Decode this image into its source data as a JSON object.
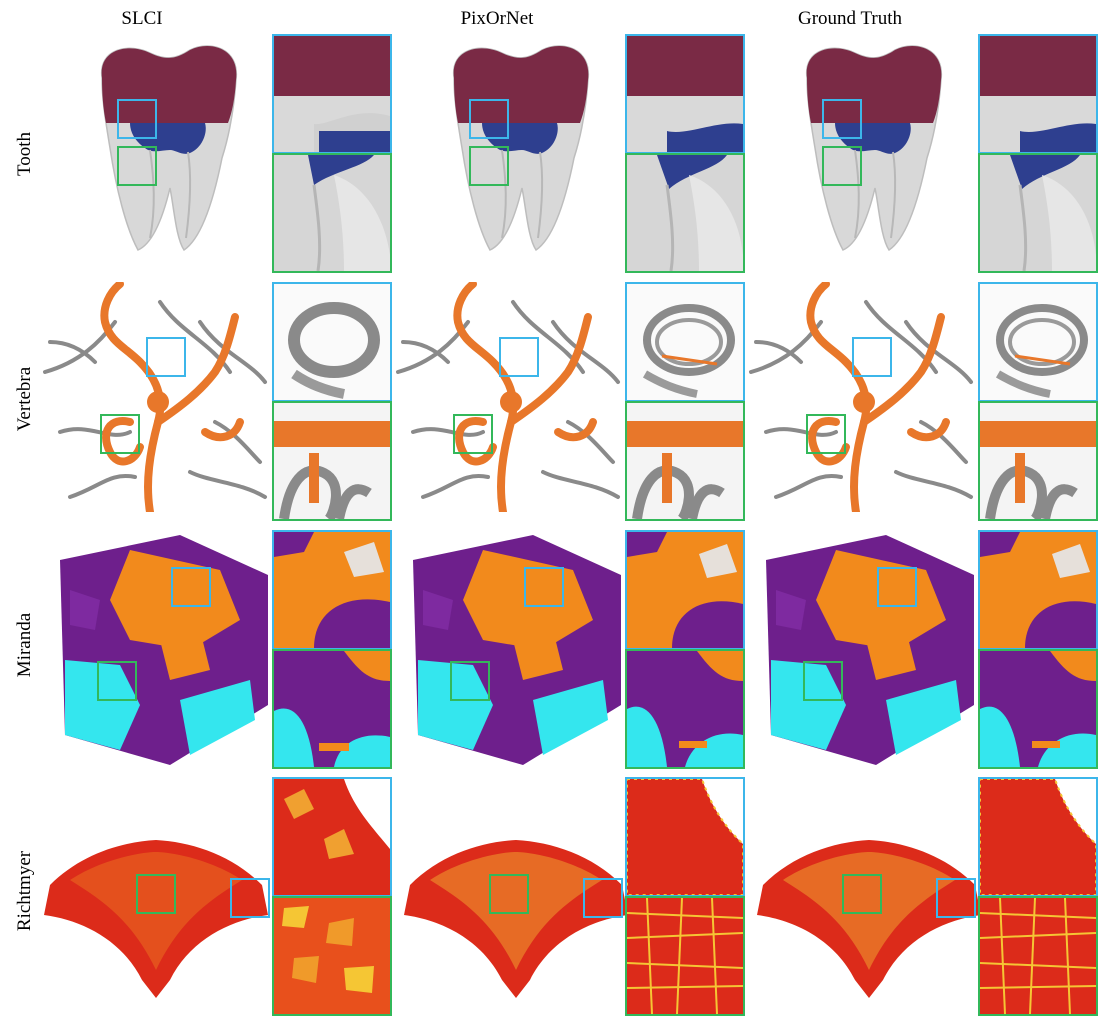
{
  "columns": {
    "slci": "SLCI",
    "pixornet": "PixOrNet",
    "ground_truth": "Ground Truth"
  },
  "rows": {
    "tooth": "Tooth",
    "vertebra": "Vertebra",
    "miranda": "Miranda",
    "richtmyer": "Richtmyer"
  },
  "colors": {
    "roi_blue": "#3cb6ea",
    "roi_green": "#33b85a",
    "tooth_crown": "#7a2a45",
    "tooth_pulp": "#2e3f8f",
    "tooth_body": "#d9d9d9",
    "vessel_orange": "#e8772a",
    "vessel_gray": "#8a8a8a",
    "miranda_orange": "#f28a1c",
    "miranda_purple": "#6e1f8c",
    "miranda_cyan": "#34e6ee",
    "richtmyer_red": "#dc2b1a",
    "richtmyer_yellow": "#f5c634"
  }
}
